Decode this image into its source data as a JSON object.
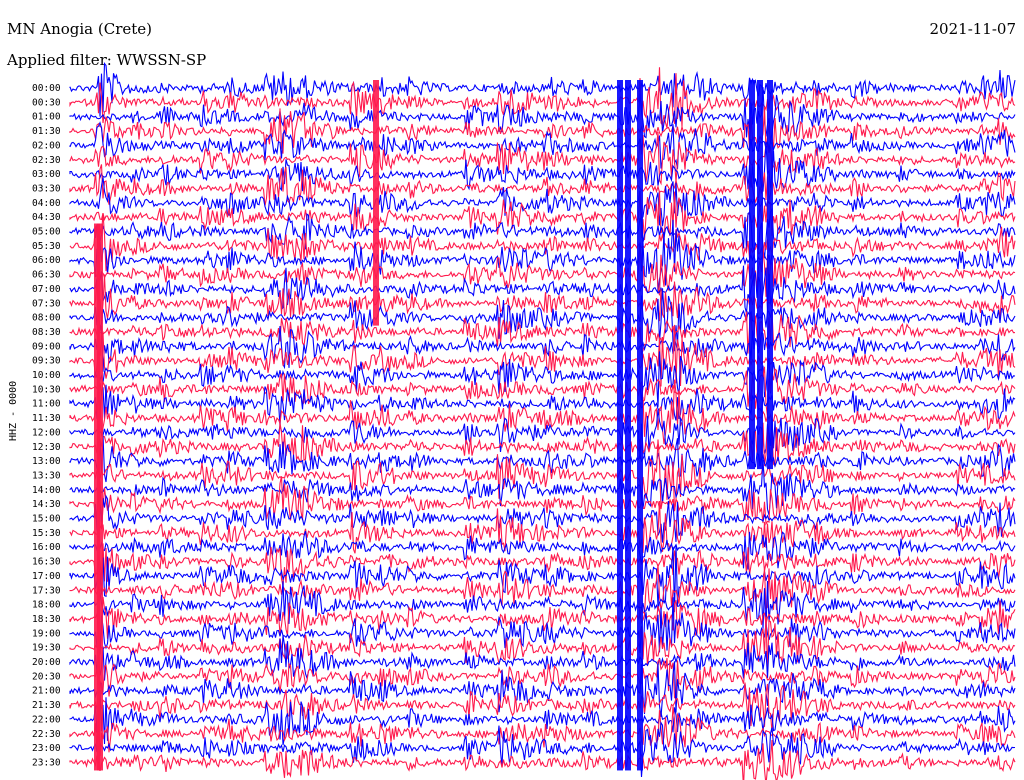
{
  "header": {
    "station": "MN Anogia (Crete)",
    "filter": "Applied filter: WWSSN-SP",
    "date": "2021-11-07"
  },
  "chart_data": {
    "type": "line",
    "title": "MN Anogia (Crete)",
    "subtitle": "Applied filter: WWSSN-SP",
    "ylabel": "HHZ - 0000",
    "xlabel": "",
    "colors": {
      "even_trace": "#0000ff",
      "odd_trace": "#ff1a4d"
    },
    "x": [
      "00:00",
      "00:30",
      "01:00",
      "01:30",
      "02:00",
      "02:30",
      "03:00",
      "03:30",
      "04:00",
      "04:30",
      "05:00",
      "05:30",
      "06:00",
      "06:30",
      "07:00",
      "07:30",
      "08:00",
      "08:30",
      "09:00",
      "09:30",
      "10:00",
      "10:30",
      "11:00",
      "11:30",
      "12:00",
      "12:30",
      "13:00",
      "13:30",
      "14:00",
      "14:30",
      "15:00",
      "15:30",
      "16:00",
      "16:30",
      "17:00",
      "17:30",
      "18:00",
      "18:30",
      "19:00",
      "19:30",
      "20:00",
      "20:30",
      "21:00",
      "21:30",
      "22:00",
      "22:30",
      "23:00",
      "23:30"
    ],
    "grid": false,
    "events": [
      {
        "pos": 0.03,
        "amp": 6.0,
        "dur": 0.04
      },
      {
        "pos": 0.035,
        "amp": 6.0,
        "dur": 0.03
      },
      {
        "pos": 0.068,
        "amp": 2.5,
        "dur": 0.05
      },
      {
        "pos": 0.098,
        "amp": 3.0,
        "dur": 0.05
      },
      {
        "pos": 0.141,
        "amp": 3.5,
        "dur": 0.07
      },
      {
        "pos": 0.17,
        "amp": 3.0,
        "dur": 0.05
      },
      {
        "pos": 0.21,
        "amp": 4.5,
        "dur": 0.08
      },
      {
        "pos": 0.225,
        "amp": 5.0,
        "dur": 0.08
      },
      {
        "pos": 0.248,
        "amp": 2.5,
        "dur": 0.05
      },
      {
        "pos": 0.3,
        "amp": 6.0,
        "dur": 0.05
      },
      {
        "pos": 0.33,
        "amp": 3.0,
        "dur": 0.05
      },
      {
        "pos": 0.36,
        "amp": 2.5,
        "dur": 0.05
      },
      {
        "pos": 0.42,
        "amp": 4.0,
        "dur": 0.06
      },
      {
        "pos": 0.455,
        "amp": 6.0,
        "dur": 0.1
      },
      {
        "pos": 0.505,
        "amp": 3.0,
        "dur": 0.06
      },
      {
        "pos": 0.545,
        "amp": 2.5,
        "dur": 0.05
      },
      {
        "pos": 0.585,
        "amp": 2.5,
        "dur": 0.04
      },
      {
        "pos": 0.605,
        "amp": 8.0,
        "dur": 0.05
      },
      {
        "pos": 0.625,
        "amp": 8.0,
        "dur": 0.05
      },
      {
        "pos": 0.64,
        "amp": 7.0,
        "dur": 0.04
      },
      {
        "pos": 0.665,
        "amp": 3.0,
        "dur": 0.07
      },
      {
        "pos": 0.715,
        "amp": 7.0,
        "dur": 0.1
      },
      {
        "pos": 0.735,
        "amp": 6.0,
        "dur": 0.08
      },
      {
        "pos": 0.765,
        "amp": 3.0,
        "dur": 0.05
      },
      {
        "pos": 0.79,
        "amp": 2.5,
        "dur": 0.04
      },
      {
        "pos": 0.83,
        "amp": 3.0,
        "dur": 0.05
      },
      {
        "pos": 0.88,
        "amp": 2.0,
        "dur": 0.04
      },
      {
        "pos": 0.94,
        "amp": 3.0,
        "dur": 0.05
      },
      {
        "pos": 0.965,
        "amp": 3.5,
        "dur": 0.05
      },
      {
        "pos": 0.985,
        "amp": 4.0,
        "dur": 0.04
      }
    ]
  }
}
